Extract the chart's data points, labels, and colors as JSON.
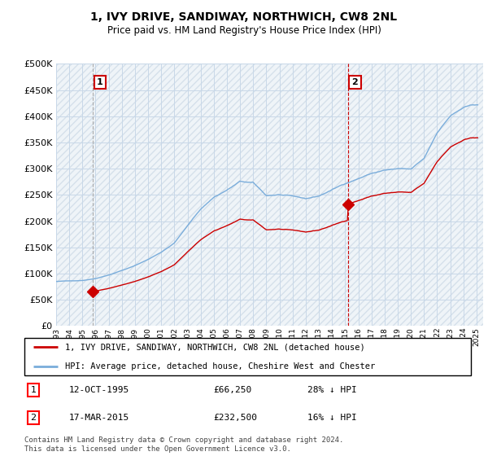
{
  "title": "1, IVY DRIVE, SANDIWAY, NORTHWICH, CW8 2NL",
  "subtitle": "Price paid vs. HM Land Registry's House Price Index (HPI)",
  "ylabel_ticks": [
    0,
    50000,
    100000,
    150000,
    200000,
    250000,
    300000,
    350000,
    400000,
    450000,
    500000
  ],
  "ylim": [
    0,
    500000
  ],
  "xlim_start": 1993.0,
  "xlim_end": 2025.5,
  "sale1_x": 1995.79,
  "sale1_price": 66250,
  "sale2_x": 2015.21,
  "sale2_price": 232500,
  "legend_line1": "1, IVY DRIVE, SANDIWAY, NORTHWICH, CW8 2NL (detached house)",
  "legend_line2": "HPI: Average price, detached house, Cheshire West and Chester",
  "footer": "Contains HM Land Registry data © Crown copyright and database right 2024.\nThis data is licensed under the Open Government Licence v3.0.",
  "property_color": "#cc0000",
  "hpi_color": "#7aaddb",
  "grid_color": "#c8d8e8",
  "bg_color": "#dce8f0"
}
